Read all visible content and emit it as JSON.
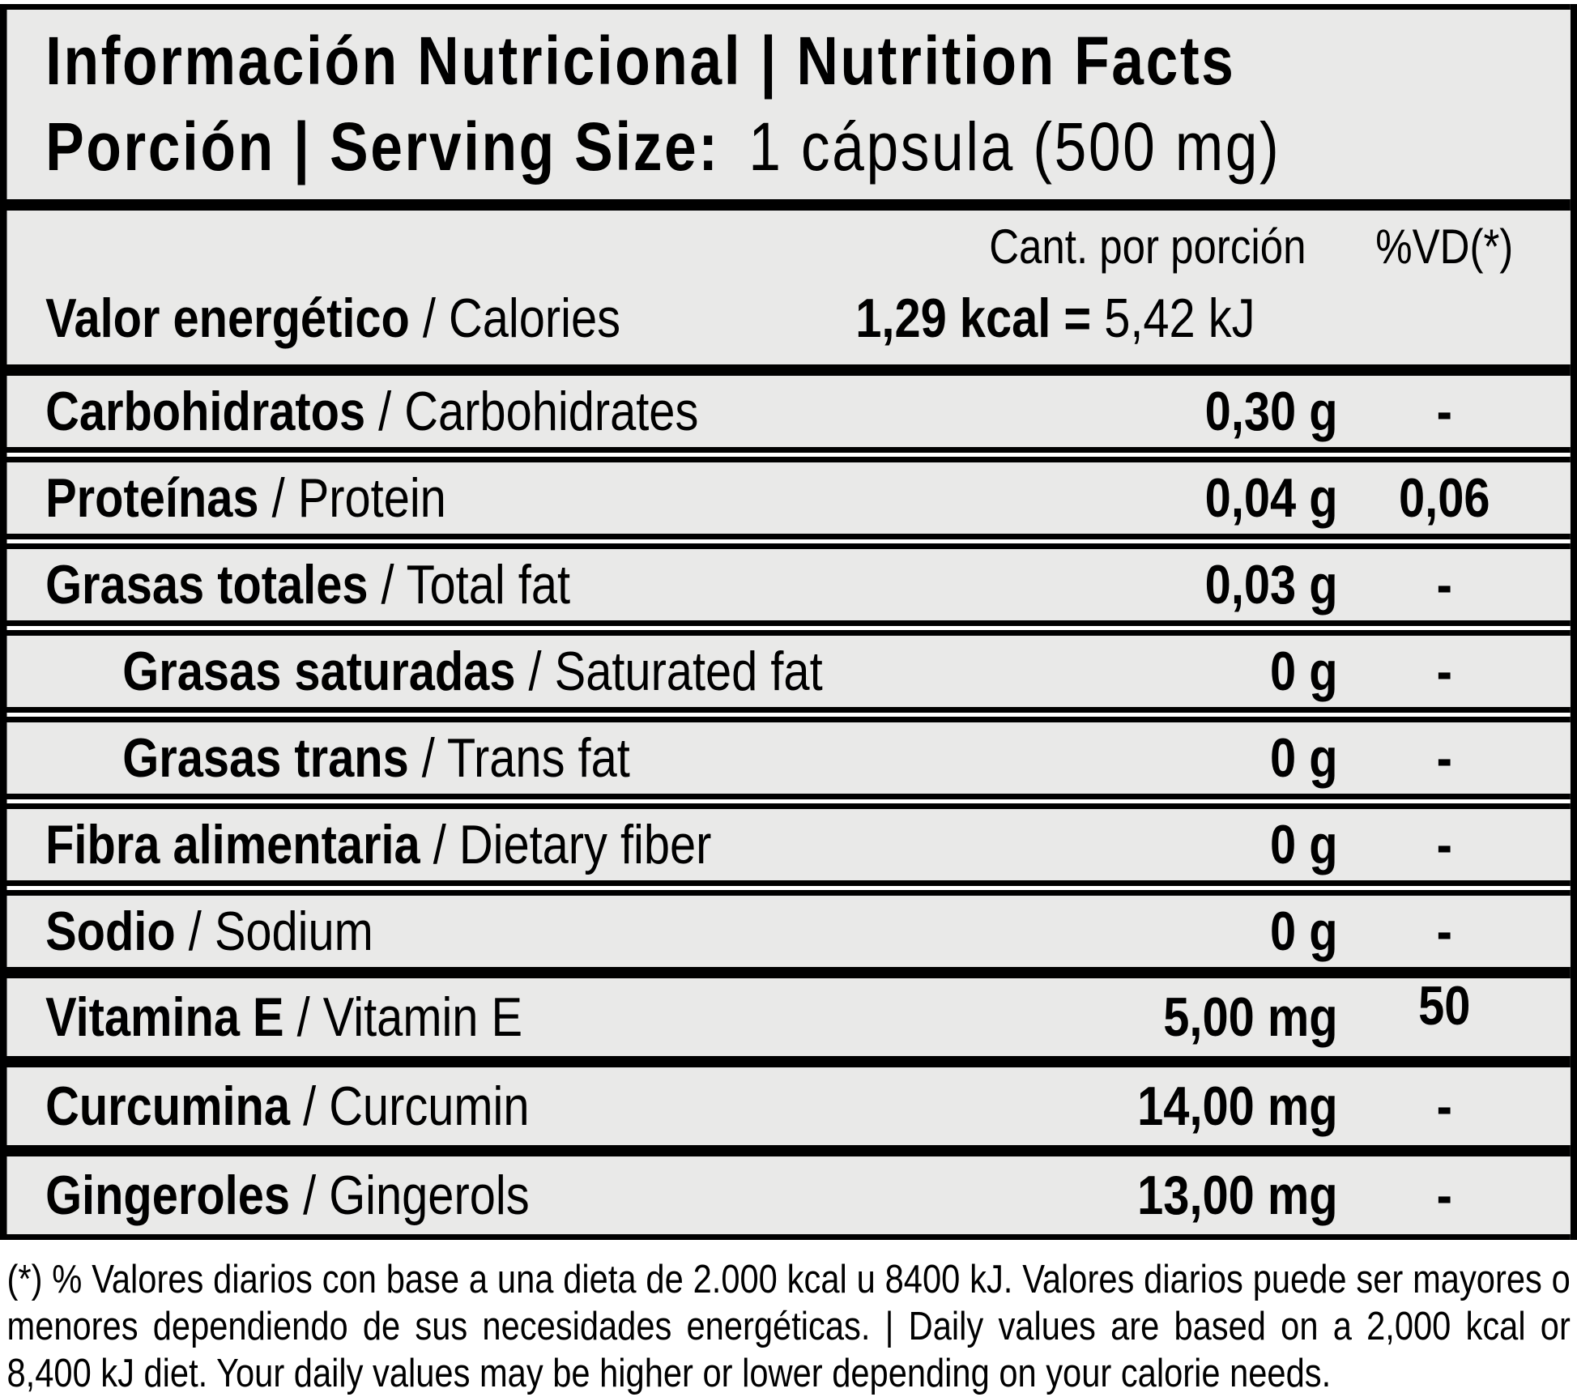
{
  "header": {
    "title": "Información Nutricional | Nutrition Facts",
    "serving_label": "Porción | Serving Size:",
    "serving_value": "1 cápsula (500 mg)"
  },
  "columns": {
    "amount": "Cant. por porción",
    "daily_value": "%VD(*)"
  },
  "sep": " / ",
  "energy": {
    "name_es": "Valor energético",
    "name_en": "Calories",
    "value_bold": "1,29 kcal = ",
    "value_regular": "5,42 kJ"
  },
  "rows": [
    {
      "es": "Carbohidratos",
      "en": "Carbohidrates",
      "amount": "0,30 g",
      "dv": "-"
    },
    {
      "es": "Proteínas",
      "en": "Protein",
      "amount": "0,04 g",
      "dv": "0,06"
    },
    {
      "es": "Grasas totales",
      "en": "Total fat",
      "amount": "0,03 g",
      "dv": "-"
    },
    {
      "es": "Grasas saturadas",
      "en": "Saturated fat",
      "amount": "0 g",
      "dv": "-"
    },
    {
      "es": "Grasas trans",
      "en": "Trans fat",
      "amount": "0 g",
      "dv": "-"
    },
    {
      "es": "Fibra alimentaria",
      "en": "Dietary fiber",
      "amount": "0 g",
      "dv": "-"
    },
    {
      "es": "Sodio",
      "en": "Sodium",
      "amount": "0 g",
      "dv": "-"
    },
    {
      "es": "Vitamina E",
      "en": "Vitamin E",
      "amount": "5,00 mg",
      "dv": "50"
    },
    {
      "es": "Curcumina",
      "en": "Curcumin",
      "amount": "14,00 mg",
      "dv": "-"
    },
    {
      "es": "Gingeroles",
      "en": "Gingerols",
      "amount": "13,00 mg",
      "dv": "-"
    }
  ],
  "footnote": "(*) % Valores diarios con base a una dieta de 2.000 kcal u 8400 kJ. Valores diarios puede ser mayores o menores dependiendo de sus necesidades energéticas. | Daily values are based on a 2,000 kcal or 8,400 kJ diet. Your daily values may be higher or lower depending on your calorie needs.",
  "colors": {
    "panel_background": "#e9e9e8",
    "border": "#000000",
    "page_background": "#ffffff",
    "text": "#000000"
  }
}
